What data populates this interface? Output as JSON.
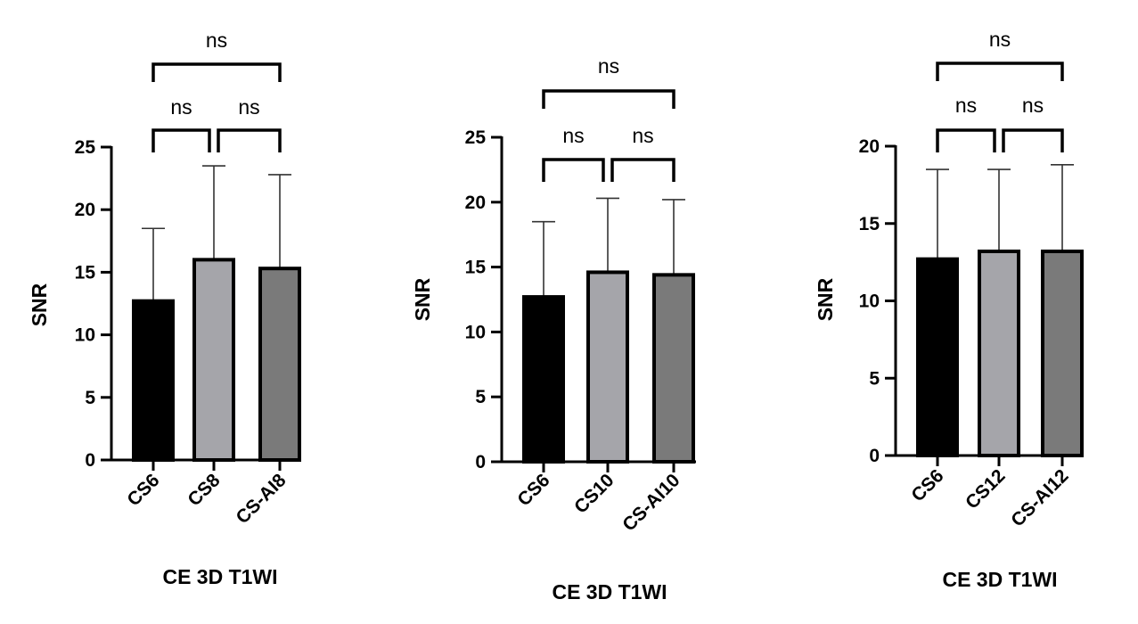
{
  "chart_data": [
    {
      "type": "bar",
      "title": "",
      "xlabel": "CE 3D T1WI",
      "ylabel": "SNR",
      "ylim": [
        0,
        25
      ],
      "yticks": [
        "0",
        "5",
        "10",
        "15",
        "20",
        "25"
      ],
      "grid": false,
      "categories": [
        "CS6",
        "CS8",
        "CS-AI8"
      ],
      "values": [
        12.7,
        16.0,
        15.3
      ],
      "error_upper": [
        18.5,
        23.5,
        22.8
      ],
      "bar_colors": [
        "#000000",
        "#a5a5aa",
        "#7a7a7a"
      ],
      "significance": [
        {
          "from": 0,
          "to": 1,
          "label": "ns"
        },
        {
          "from": 1,
          "to": 2,
          "label": "ns"
        },
        {
          "from": 0,
          "to": 2,
          "label": "ns"
        }
      ]
    },
    {
      "type": "bar",
      "title": "",
      "xlabel": "CE 3D T1WI",
      "ylabel": "SNR",
      "ylim": [
        0,
        25
      ],
      "yticks": [
        "0",
        "5",
        "10",
        "15",
        "20",
        "25"
      ],
      "grid": false,
      "categories": [
        "CS6",
        "CS10",
        "CS-AI10"
      ],
      "values": [
        12.7,
        14.6,
        14.4
      ],
      "error_upper": [
        18.5,
        20.3,
        20.2
      ],
      "bar_colors": [
        "#000000",
        "#a5a5aa",
        "#7a7a7a"
      ],
      "significance": [
        {
          "from": 0,
          "to": 1,
          "label": "ns"
        },
        {
          "from": 1,
          "to": 2,
          "label": "ns"
        },
        {
          "from": 0,
          "to": 2,
          "label": "ns"
        }
      ]
    },
    {
      "type": "bar",
      "title": "",
      "xlabel": "CE 3D T1WI",
      "ylabel": "SNR",
      "ylim": [
        0,
        20
      ],
      "yticks": [
        "0",
        "5",
        "10",
        "15",
        "20"
      ],
      "grid": false,
      "categories": [
        "CS6",
        "CS12",
        "CS-AI12"
      ],
      "values": [
        12.7,
        13.2,
        13.2
      ],
      "error_upper": [
        18.5,
        18.5,
        18.8
      ],
      "bar_colors": [
        "#000000",
        "#a5a5aa",
        "#7a7a7a"
      ],
      "significance": [
        {
          "from": 0,
          "to": 1,
          "label": "ns"
        },
        {
          "from": 1,
          "to": 2,
          "label": "ns"
        },
        {
          "from": 0,
          "to": 2,
          "label": "ns"
        }
      ]
    }
  ]
}
